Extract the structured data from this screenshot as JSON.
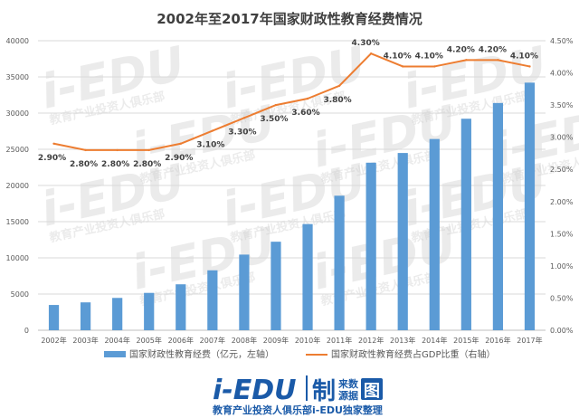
{
  "chart_data": {
    "type": "bar+line",
    "title": "2002年至2017年国家财政性教育经费情况",
    "categories": [
      "2002年",
      "2003年",
      "2004年",
      "2005年",
      "2006年",
      "2007年",
      "2008年",
      "2009年",
      "2010年",
      "2011年",
      "2012年",
      "2013年",
      "2014年",
      "2015年",
      "2016年",
      "2017年"
    ],
    "series": [
      {
        "name": "国家财政性教育经费（亿元，左轴）",
        "type": "bar",
        "axis": "left",
        "color": "#5b9bd5",
        "values": [
          3491,
          3851,
          4466,
          5161,
          6348,
          8280,
          10450,
          12231,
          14670,
          18587,
          23148,
          24488,
          26421,
          29221,
          31396,
          34208
        ]
      },
      {
        "name": "国家财政性教育经费占GDP比重（右轴）",
        "type": "line",
        "axis": "right",
        "color": "#ed7d31",
        "values": [
          2.9,
          2.8,
          2.8,
          2.8,
          2.9,
          3.1,
          3.3,
          3.5,
          3.6,
          3.8,
          4.3,
          4.1,
          4.1,
          4.2,
          4.2,
          4.1
        ],
        "labels": [
          "2.90%",
          "2.80%",
          "2.80%",
          "2.80%",
          "2.90%",
          "3.10%",
          "3.30%",
          "3.50%",
          "3.60%",
          "3.80%",
          "4.30%",
          "4.10%",
          "4.10%",
          "4.20%",
          "4.20%",
          "4.10%"
        ]
      }
    ],
    "y_left": {
      "ylim": [
        0,
        40000
      ],
      "ticks": [
        "0",
        "5000",
        "10000",
        "15000",
        "20000",
        "25000",
        "30000",
        "35000",
        "40000"
      ]
    },
    "y_right": {
      "ylim": [
        0,
        4.5
      ],
      "ticks": [
        "0.00%",
        "0.50%",
        "1.00%",
        "1.50%",
        "2.00%",
        "2.50%",
        "3.00%",
        "3.50%",
        "4.00%",
        "4.50%"
      ]
    },
    "grid": true,
    "legend_position": "bottom"
  },
  "watermark": {
    "text": "i-EDU",
    "sub": "教育产业投资人俱乐部"
  },
  "footer": {
    "logo_text": "i-EDU",
    "brand_char": "制",
    "source_top": "来数",
    "source_bottom": "源据",
    "chart_char": "图",
    "left_caption": "教育产业投资人俱乐部",
    "right_caption": "i-EDU独家整理",
    "logo_color": "#1a5aa8"
  }
}
